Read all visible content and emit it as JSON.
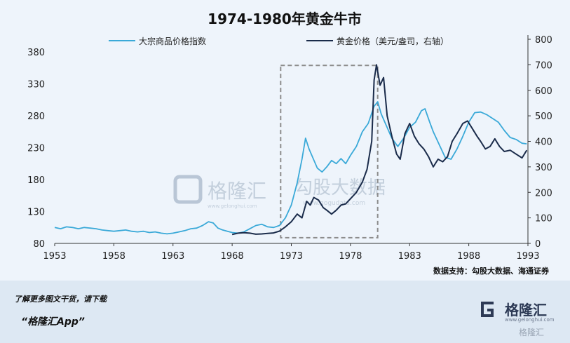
{
  "chart_data": {
    "type": "line",
    "title": "1974-1980年黄金牛市",
    "source": "数据支持：勾股大数据、海通证券",
    "x_range": [
      1953,
      1993
    ],
    "x_ticks": [
      "1953",
      "1958",
      "1963",
      "1968",
      "1973",
      "1978",
      "1983",
      "1988",
      "1993"
    ],
    "y_left": {
      "range": [
        80,
        400
      ],
      "ticks": [
        "80",
        "130",
        "180",
        "230",
        "280",
        "330",
        "380"
      ]
    },
    "y_right": {
      "range": [
        0,
        800
      ],
      "ticks": [
        "0",
        "100",
        "200",
        "300",
        "400",
        "500",
        "600",
        "700",
        "800"
      ]
    },
    "highlight_box": {
      "x_range": [
        1972.1,
        1980.3
      ],
      "y_left_range": [
        89,
        359
      ]
    },
    "series": [
      {
        "name": "大宗商品价格指数",
        "axis": "left",
        "color": "#3aa9d8",
        "points": [
          [
            1953.0,
            105
          ],
          [
            1953.5,
            103
          ],
          [
            1954.0,
            106
          ],
          [
            1954.5,
            105
          ],
          [
            1955.0,
            103
          ],
          [
            1955.5,
            105
          ],
          [
            1956.0,
            104
          ],
          [
            1956.5,
            103
          ],
          [
            1957.0,
            101
          ],
          [
            1957.5,
            100
          ],
          [
            1958.0,
            99
          ],
          [
            1958.5,
            100
          ],
          [
            1959.0,
            101
          ],
          [
            1959.5,
            99
          ],
          [
            1960.0,
            98
          ],
          [
            1960.5,
            99
          ],
          [
            1961.0,
            97
          ],
          [
            1961.5,
            98
          ],
          [
            1962.0,
            96
          ],
          [
            1962.5,
            95
          ],
          [
            1963.0,
            96
          ],
          [
            1963.5,
            98
          ],
          [
            1964.0,
            100
          ],
          [
            1964.5,
            103
          ],
          [
            1965.0,
            104
          ],
          [
            1965.5,
            108
          ],
          [
            1966.0,
            114
          ],
          [
            1966.4,
            112
          ],
          [
            1966.8,
            104
          ],
          [
            1967.2,
            101
          ],
          [
            1967.6,
            99
          ],
          [
            1968.0,
            97
          ],
          [
            1968.5,
            96
          ],
          [
            1969.0,
            98
          ],
          [
            1969.5,
            103
          ],
          [
            1970.0,
            108
          ],
          [
            1970.5,
            110
          ],
          [
            1971.0,
            106
          ],
          [
            1971.5,
            105
          ],
          [
            1972.0,
            108
          ],
          [
            1972.5,
            120
          ],
          [
            1973.0,
            140
          ],
          [
            1973.5,
            175
          ],
          [
            1973.9,
            212
          ],
          [
            1974.2,
            245
          ],
          [
            1974.5,
            228
          ],
          [
            1974.8,
            215
          ],
          [
            1975.2,
            198
          ],
          [
            1975.6,
            192
          ],
          [
            1976.0,
            200
          ],
          [
            1976.4,
            210
          ],
          [
            1976.8,
            205
          ],
          [
            1977.2,
            213
          ],
          [
            1977.6,
            205
          ],
          [
            1978.0,
            218
          ],
          [
            1978.5,
            232
          ],
          [
            1979.0,
            255
          ],
          [
            1979.5,
            268
          ],
          [
            1980.0,
            295
          ],
          [
            1980.3,
            302
          ],
          [
            1980.6,
            283
          ],
          [
            1981.0,
            266
          ],
          [
            1981.5,
            245
          ],
          [
            1982.0,
            232
          ],
          [
            1982.5,
            245
          ],
          [
            1983.0,
            262
          ],
          [
            1983.5,
            270
          ],
          [
            1984.0,
            288
          ],
          [
            1984.3,
            291
          ],
          [
            1984.7,
            270
          ],
          [
            1985.0,
            255
          ],
          [
            1985.5,
            235
          ],
          [
            1986.0,
            215
          ],
          [
            1986.5,
            212
          ],
          [
            1987.0,
            228
          ],
          [
            1987.5,
            248
          ],
          [
            1988.0,
            270
          ],
          [
            1988.5,
            285
          ],
          [
            1989.0,
            286
          ],
          [
            1989.5,
            282
          ],
          [
            1990.0,
            276
          ],
          [
            1990.5,
            270
          ],
          [
            1991.0,
            257
          ],
          [
            1991.5,
            246
          ],
          [
            1992.0,
            243
          ],
          [
            1992.5,
            237
          ],
          [
            1992.9,
            236
          ]
        ]
      },
      {
        "name": "黄金价格（美元/盎司，右轴）",
        "axis": "right",
        "color": "#1a2b4a",
        "points": [
          [
            1968.0,
            35
          ],
          [
            1968.5,
            40
          ],
          [
            1969.0,
            42
          ],
          [
            1969.5,
            40
          ],
          [
            1970.0,
            36
          ],
          [
            1970.5,
            37
          ],
          [
            1971.0,
            39
          ],
          [
            1971.5,
            41
          ],
          [
            1972.0,
            48
          ],
          [
            1972.5,
            65
          ],
          [
            1973.0,
            85
          ],
          [
            1973.5,
            115
          ],
          [
            1973.9,
            100
          ],
          [
            1974.3,
            165
          ],
          [
            1974.6,
            150
          ],
          [
            1974.9,
            180
          ],
          [
            1975.3,
            170
          ],
          [
            1975.7,
            140
          ],
          [
            1976.0,
            130
          ],
          [
            1976.4,
            115
          ],
          [
            1976.8,
            130
          ],
          [
            1977.2,
            150
          ],
          [
            1977.6,
            155
          ],
          [
            1978.0,
            175
          ],
          [
            1978.5,
            200
          ],
          [
            1979.0,
            240
          ],
          [
            1979.4,
            290
          ],
          [
            1979.8,
            400
          ],
          [
            1980.0,
            640
          ],
          [
            1980.2,
            700
          ],
          [
            1980.5,
            620
          ],
          [
            1980.8,
            650
          ],
          [
            1981.1,
            500
          ],
          [
            1981.5,
            420
          ],
          [
            1981.9,
            350
          ],
          [
            1982.2,
            330
          ],
          [
            1982.6,
            430
          ],
          [
            1983.0,
            470
          ],
          [
            1983.4,
            420
          ],
          [
            1983.8,
            390
          ],
          [
            1984.2,
            370
          ],
          [
            1984.6,
            340
          ],
          [
            1985.0,
            300
          ],
          [
            1985.4,
            330
          ],
          [
            1985.8,
            320
          ],
          [
            1986.2,
            340
          ],
          [
            1986.6,
            400
          ],
          [
            1987.0,
            430
          ],
          [
            1987.5,
            470
          ],
          [
            1987.9,
            480
          ],
          [
            1988.3,
            450
          ],
          [
            1988.7,
            420
          ],
          [
            1989.0,
            400
          ],
          [
            1989.4,
            370
          ],
          [
            1989.8,
            380
          ],
          [
            1990.2,
            410
          ],
          [
            1990.6,
            380
          ],
          [
            1991.0,
            360
          ],
          [
            1991.5,
            365
          ],
          [
            1992.0,
            350
          ],
          [
            1992.5,
            335
          ],
          [
            1992.9,
            365
          ]
        ]
      }
    ]
  },
  "watermark": {
    "brand": "格隆汇",
    "site": "www.gelonghui.com",
    "partner": "勾股大数据",
    "partner_site": "www.gogudata.com"
  },
  "footer": {
    "line1": "了解更多图文干货，请下载",
    "line2": "“格隆汇App”",
    "logo_text": "格隆汇",
    "logo_sub": "www.gelonghui.com",
    "watermark2": "格隆汇"
  }
}
